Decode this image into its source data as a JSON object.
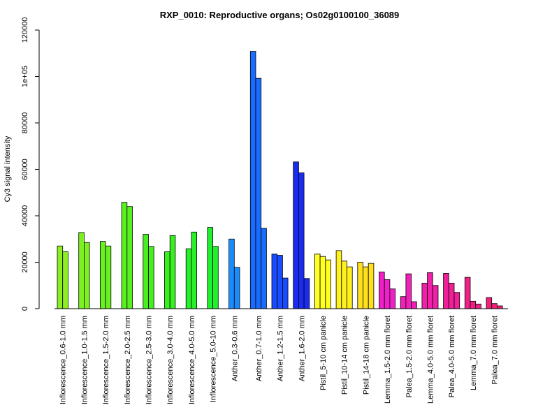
{
  "chart_data": {
    "type": "bar",
    "title": "RXP_0010: Reproductive organs; Os02g0100100_36089",
    "xlabel": "",
    "ylabel": "Cy3 signal intensity",
    "ylim": [
      0,
      120000
    ],
    "yticks": [
      0,
      20000,
      40000,
      60000,
      80000,
      100000,
      120000
    ],
    "ytick_labels": [
      "0",
      "20000",
      "40000",
      "60000",
      "80000",
      "1e+05",
      "120000"
    ],
    "grid": false,
    "groups": [
      {
        "label": "Inflorescence_0.6-1.0 mm",
        "color": "#8cf020",
        "values": [
          27000,
          24500
        ]
      },
      {
        "label": "Inflorescence_1.0-1.5 mm",
        "color": "#7cf020",
        "values": [
          32800,
          28500
        ]
      },
      {
        "label": "Inflorescence_1.5-2.0 mm",
        "color": "#6af020",
        "values": [
          29000,
          27000
        ]
      },
      {
        "label": "Inflorescence_2.0-2.5 mm",
        "color": "#58f020",
        "values": [
          45800,
          44000
        ]
      },
      {
        "label": "Inflorescence_2.5-3.0 mm",
        "color": "#46f020",
        "values": [
          32000,
          26800
        ]
      },
      {
        "label": "Inflorescence_3.0-4.0 mm",
        "color": "#36f020",
        "values": [
          24500,
          31500
        ]
      },
      {
        "label": "Inflorescence_4.0-5.0 mm",
        "color": "#28f028",
        "values": [
          25800,
          33000
        ]
      },
      {
        "label": "Inflorescence_5.0-10 mm",
        "color": "#20f030",
        "values": [
          35000,
          26800
        ]
      },
      {
        "label": "Anther_0.3-0.6 mm",
        "color": "#1a8cff",
        "values": [
          30000,
          17800
        ]
      },
      {
        "label": "Anther_0.7-1.0 mm",
        "color": "#1a6cff",
        "values": [
          110800,
          99200,
          34600
        ]
      },
      {
        "label": "Anther_1.2-1.5 mm",
        "color": "#1a4cff",
        "values": [
          23500,
          23000,
          13200
        ]
      },
      {
        "label": "Anther_1.6-2.0 mm",
        "color": "#1a2cf0",
        "values": [
          63200,
          58500,
          13000
        ]
      },
      {
        "label": "Pistil_5-10 cm panicle",
        "color": "#ffff20",
        "values": [
          23500,
          22500,
          21000
        ]
      },
      {
        "label": "Pistil_10-14 cm panicle",
        "color": "#fff020",
        "values": [
          25000,
          20500,
          18000
        ]
      },
      {
        "label": "Pistil_14-18 cm panicle",
        "color": "#ffe020",
        "values": [
          20000,
          18000,
          19500
        ]
      },
      {
        "label": "Lemma_1.5-2.0 mm floret",
        "color": "#f020c8",
        "values": [
          15800,
          12500,
          8500
        ]
      },
      {
        "label": "Palea_1.5-2.0 mm floret",
        "color": "#f020b8",
        "values": [
          5200,
          15000,
          3000
        ]
      },
      {
        "label": "Lemma_4.0-5.0 mm floret",
        "color": "#f020a8",
        "values": [
          11000,
          15500,
          10000
        ]
      },
      {
        "label": "Palea_4.0-5.0 mm floret",
        "color": "#f02098",
        "values": [
          15200,
          11000,
          7000
        ]
      },
      {
        "label": "Lemma_7.0 mm floret",
        "color": "#f02088",
        "values": [
          13500,
          3200,
          2000
        ]
      },
      {
        "label": "Palea_7.0 mm floret",
        "color": "#f02078",
        "values": [
          4800,
          2200,
          1200
        ]
      }
    ]
  }
}
